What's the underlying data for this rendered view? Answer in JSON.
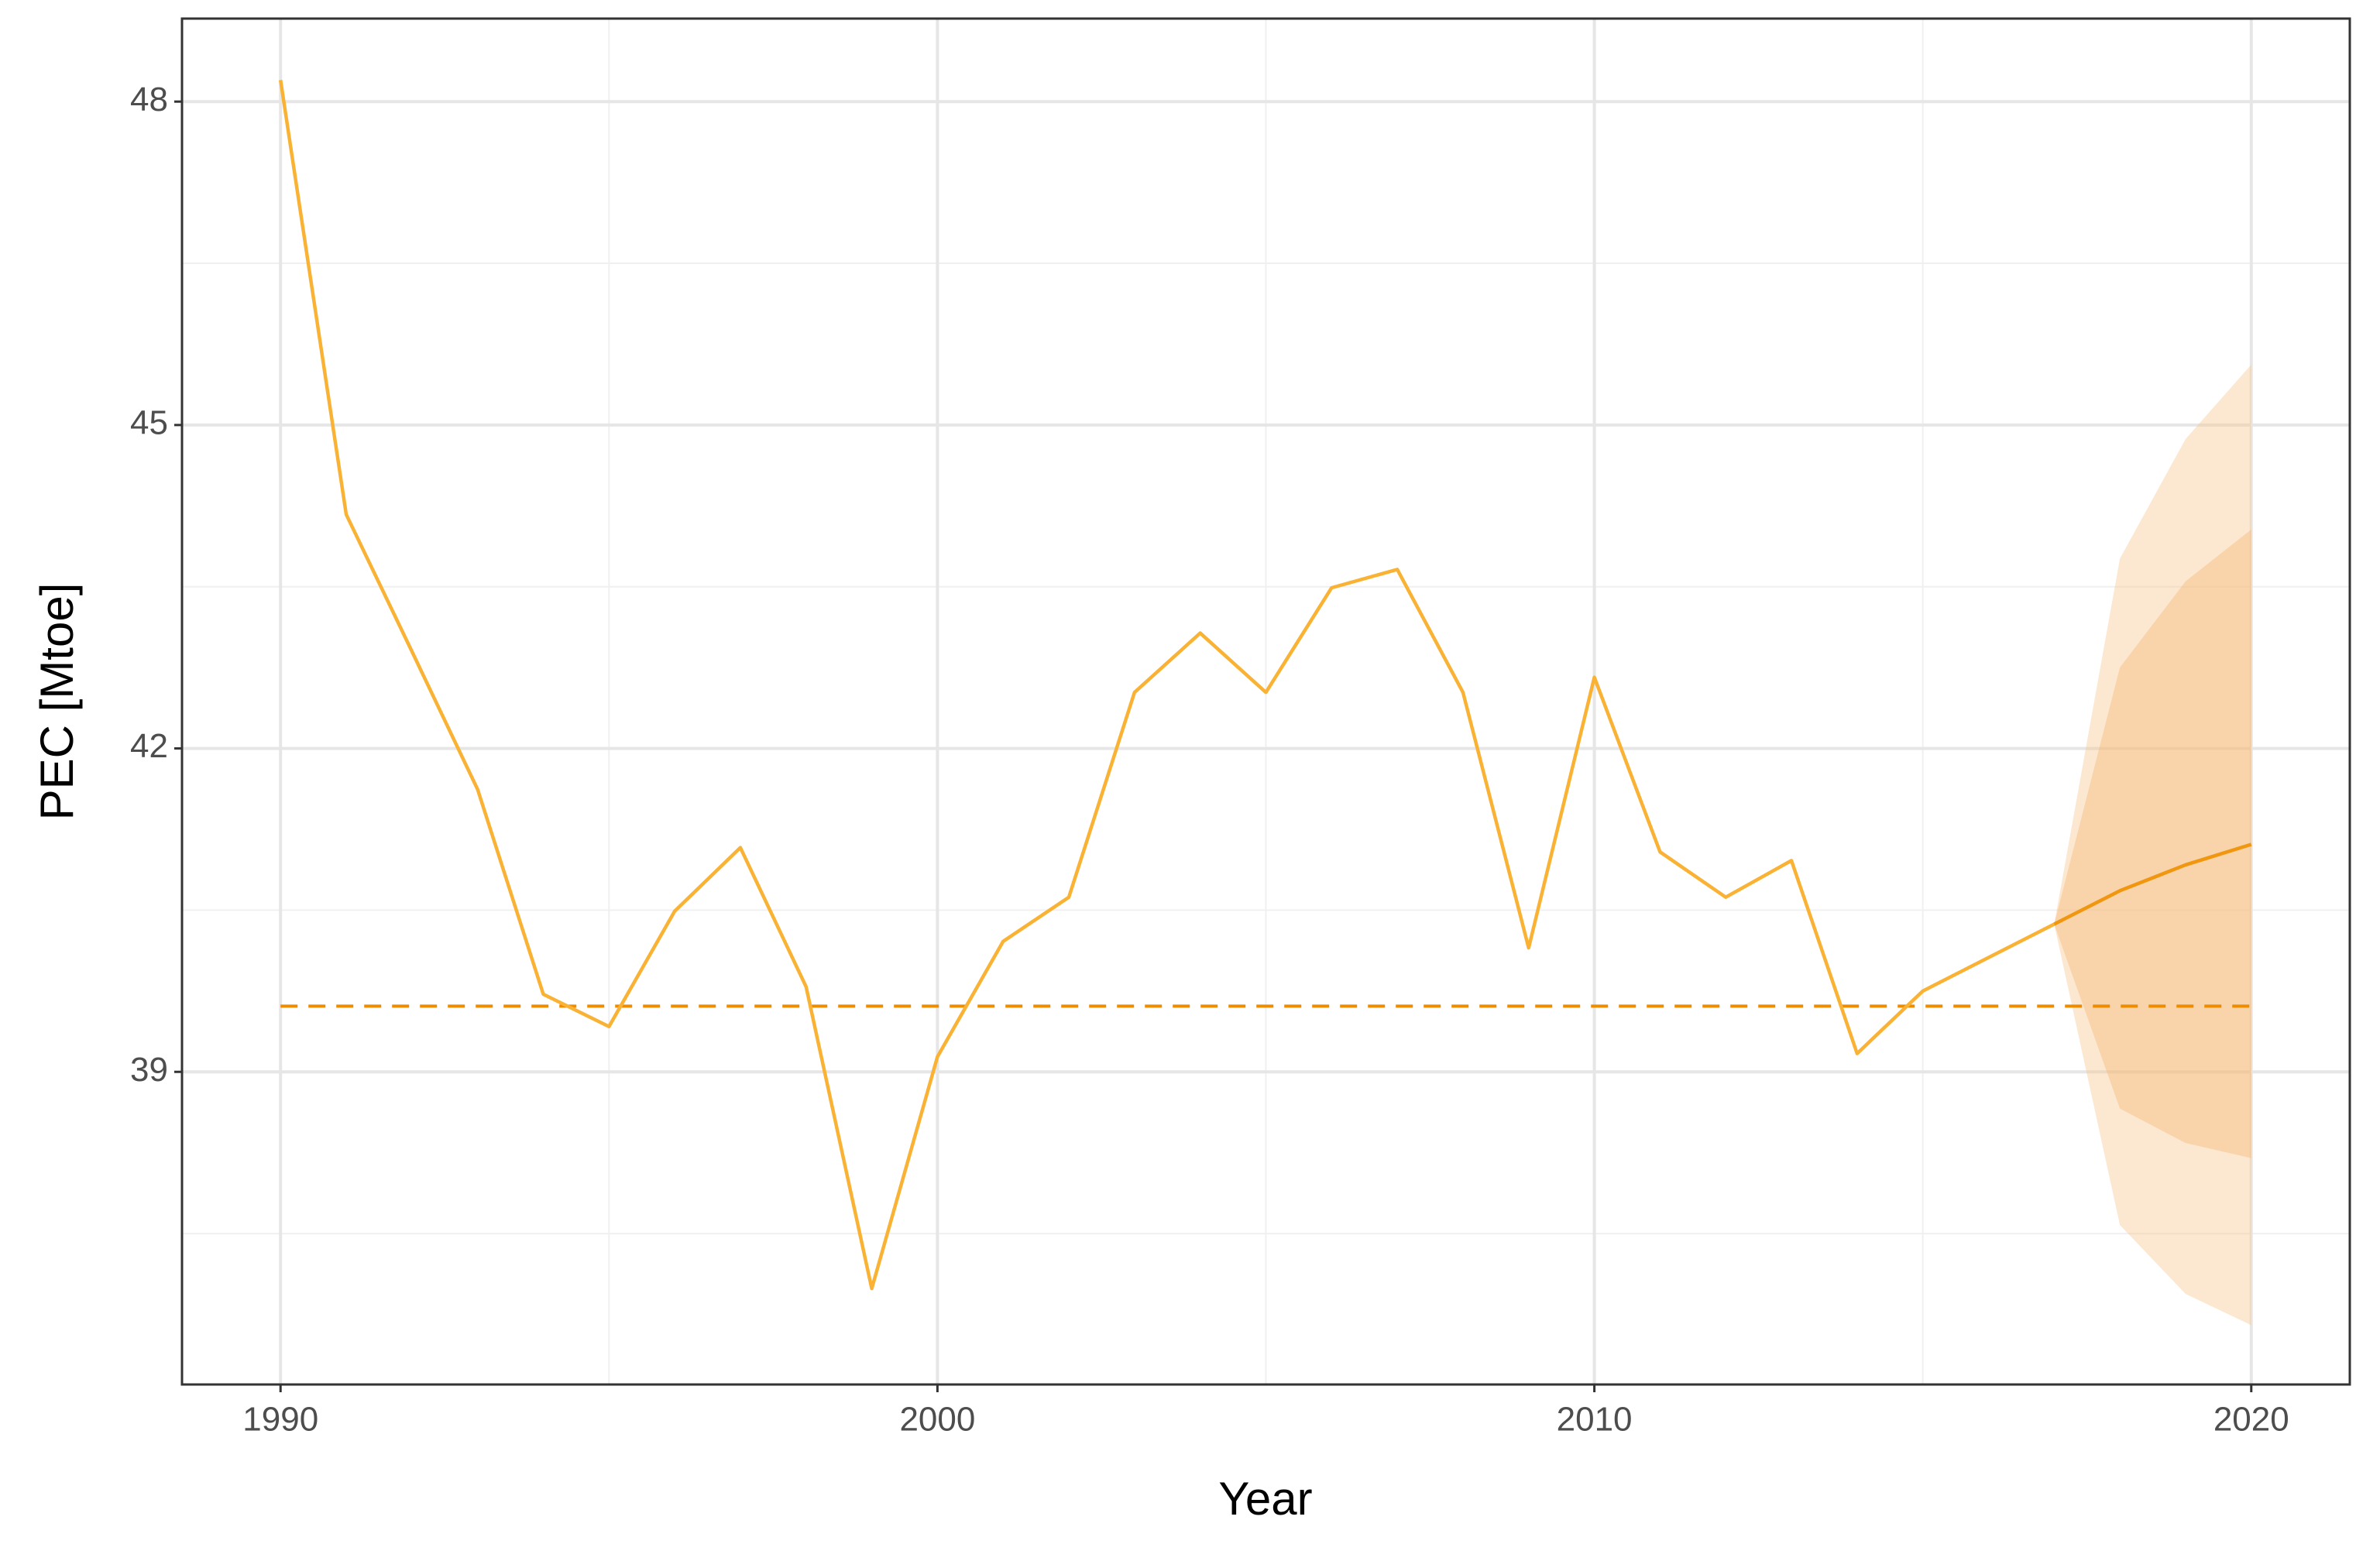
{
  "chart_data": {
    "type": "line",
    "x_label": "Year",
    "y_label": "PEC [Mtoe]",
    "xlim": [
      1988.5,
      2021.5
    ],
    "ylim": [
      36.1,
      48.77
    ],
    "xticks": [
      1990,
      2000,
      2010,
      2020
    ],
    "yticks": [
      39,
      42,
      45,
      48
    ],
    "x_minor_ticks": [
      1995,
      2005,
      2015
    ],
    "y_minor_ticks": [
      37.5,
      40.5,
      43.5,
      46.5
    ],
    "grid": true,
    "series": [
      {
        "color": "#F9B233",
        "x": [
          1990,
          1991,
          1992,
          1993,
          1994,
          1995,
          1996,
          1997,
          1998,
          1999,
          2000,
          2001,
          2002,
          2003,
          2004,
          2005,
          2006,
          2007,
          2008,
          2009,
          2010,
          2011,
          2012,
          2013,
          2014,
          2015,
          2016,
          2017
        ],
        "values": [
          48.2,
          44.17,
          42.9,
          41.62,
          39.72,
          39.42,
          40.49,
          41.08,
          39.79,
          36.99,
          39.14,
          40.21,
          40.62,
          42.52,
          43.07,
          42.52,
          43.49,
          43.66,
          42.52,
          40.15,
          42.66,
          41.04,
          40.62,
          40.96,
          39.17,
          39.75,
          40.06,
          40.37
        ]
      },
      {
        "color": "#F0960F",
        "x": [
          2017,
          2018,
          2019,
          2020
        ],
        "values": [
          40.37,
          40.68,
          40.92,
          41.11
        ]
      }
    ],
    "bands": [
      {
        "color": "#F7C68A",
        "opacity": 0.4,
        "x": [
          2017,
          2018,
          2019,
          2020
        ],
        "lower": [
          40.37,
          37.58,
          36.94,
          36.65
        ],
        "upper": [
          40.37,
          43.76,
          44.87,
          45.56
        ]
      },
      {
        "color": "#F5B370",
        "opacity": 0.4,
        "x": [
          2017,
          2018,
          2019,
          2020
        ],
        "lower": [
          40.37,
          38.66,
          38.34,
          38.2
        ],
        "upper": [
          40.37,
          42.75,
          43.55,
          44.03
        ]
      }
    ],
    "reference_line": {
      "value": 39.61,
      "x": [
        1990,
        2020
      ],
      "color": "#EE8C00",
      "dashed": true
    }
  }
}
